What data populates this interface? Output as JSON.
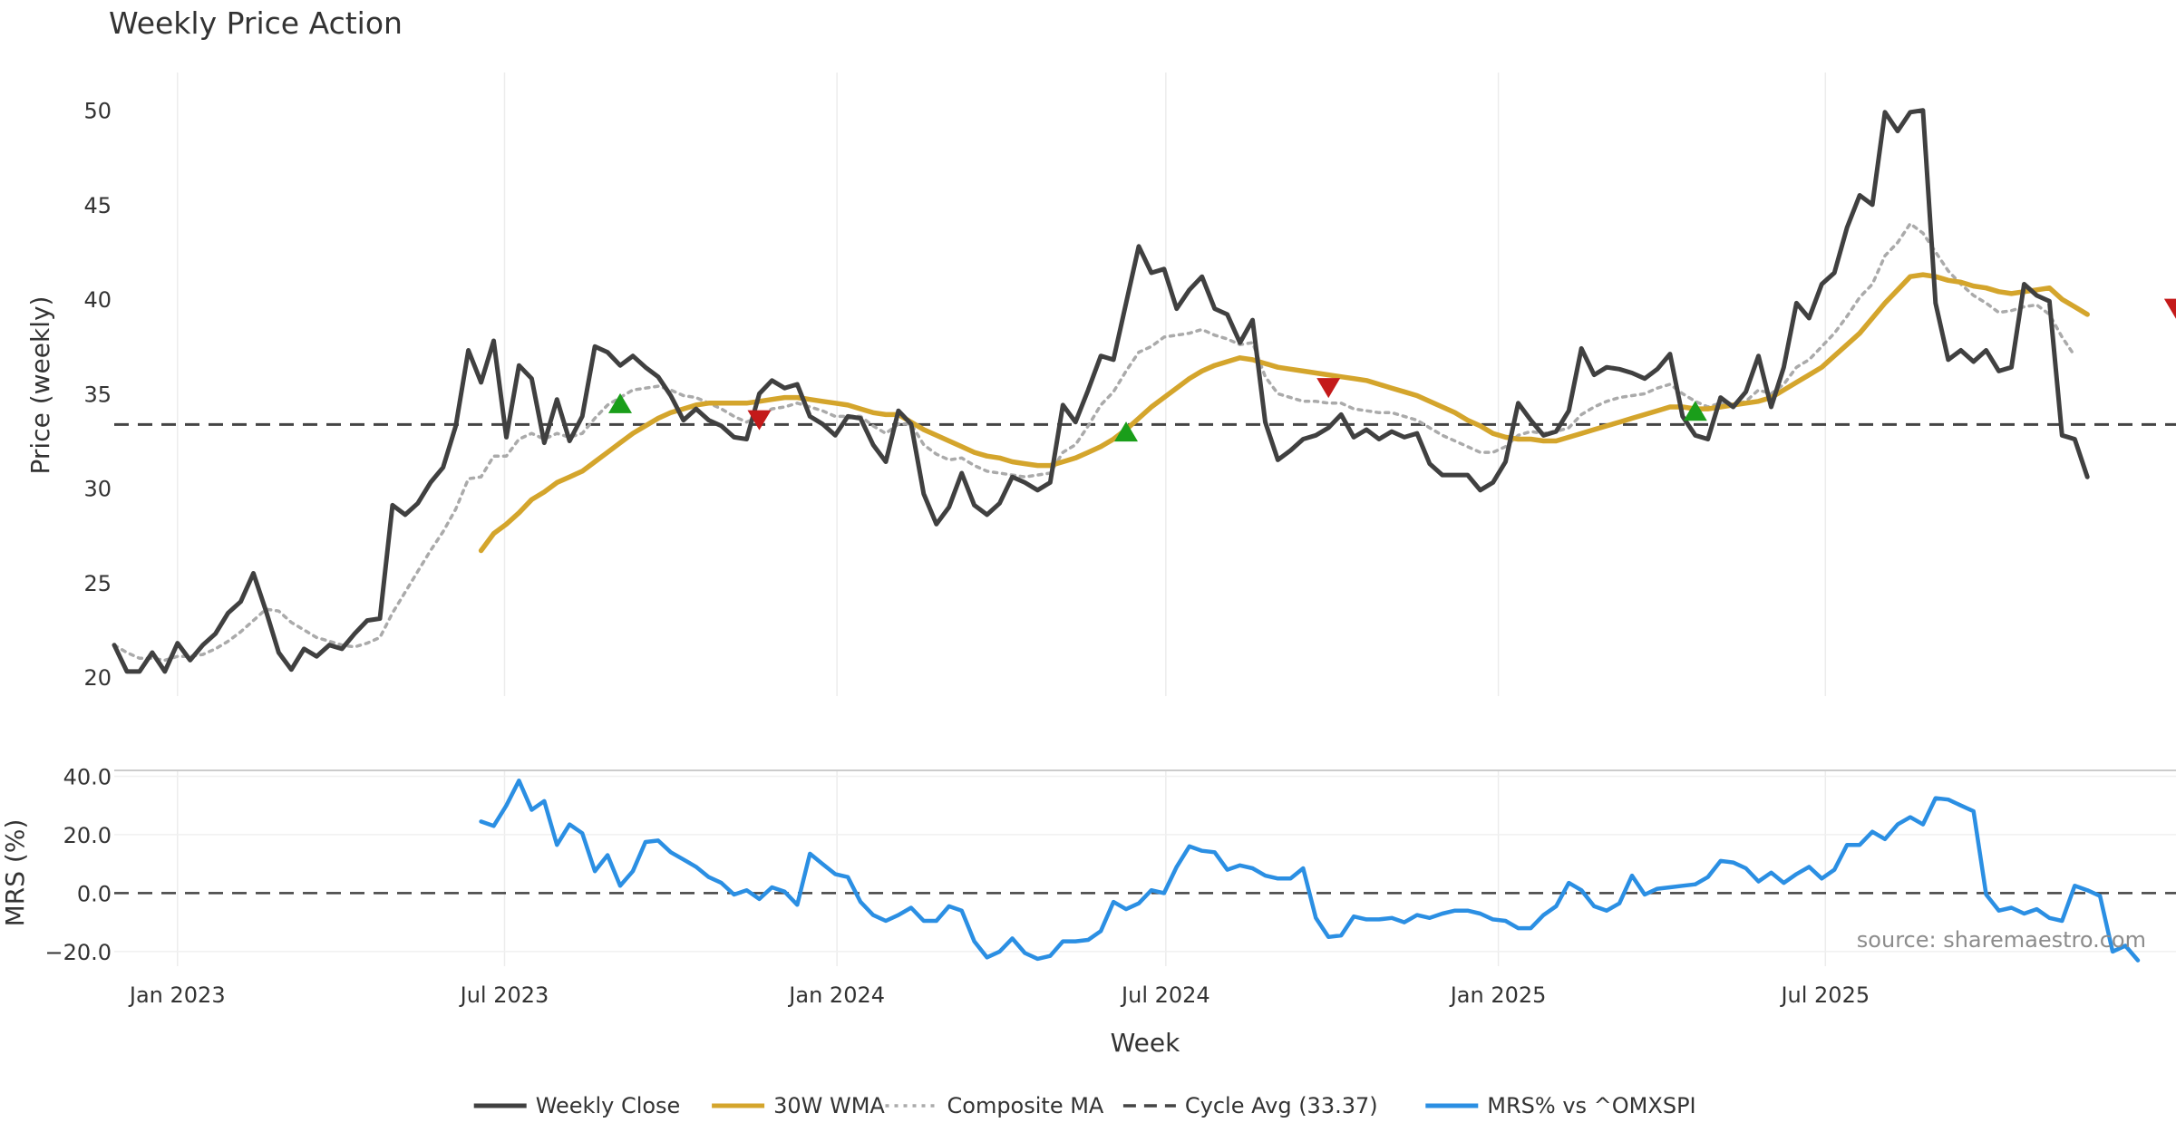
{
  "title": "Weekly Price Action",
  "source_note": "source: sharemaestro.com",
  "colors": {
    "close": "#404040",
    "wma": "#d4a52c",
    "composite": "#aaaaaa",
    "cycle": "#444444",
    "mrs": "#2b8fe3",
    "buy": "#1a9e1a",
    "sell": "#c41a1a",
    "grid": "#ececec"
  },
  "chart_data": [
    {
      "type": "line",
      "title": "Weekly Price Action",
      "xlabel": "",
      "ylabel": "Price (weekly)",
      "ylim": [
        19,
        52
      ],
      "yticks": [
        20,
        25,
        30,
        35,
        40,
        45,
        50
      ],
      "x_start": "2022-11-27",
      "x_step_days": 7,
      "cycle_avg": 33.37,
      "series": [
        {
          "name": "Weekly Close",
          "start_index": 0,
          "values": [
            21.7,
            20.3,
            20.3,
            21.3,
            20.3,
            21.8,
            20.9,
            21.7,
            22.3,
            23.4,
            24.0,
            25.5,
            23.5,
            21.3,
            20.4,
            21.5,
            21.1,
            21.7,
            21.5,
            22.3,
            23.0,
            23.1,
            29.1,
            28.6,
            29.2,
            30.3,
            31.1,
            33.3,
            37.3,
            35.6,
            37.8,
            32.7,
            36.5,
            35.8,
            32.4,
            34.7,
            32.5,
            33.8,
            37.5,
            37.2,
            36.5,
            37.0,
            36.4,
            35.9,
            34.9,
            33.6,
            34.2,
            33.6,
            33.3,
            32.7,
            32.6,
            35.0,
            35.7,
            35.3,
            35.5,
            33.8,
            33.4,
            32.8,
            33.8,
            33.7,
            32.3,
            31.4,
            34.1,
            33.4,
            29.7,
            28.1,
            29.0,
            30.8,
            29.1,
            28.6,
            29.2,
            30.6,
            30.3,
            29.9,
            30.3,
            34.4,
            33.5,
            35.2,
            37.0,
            36.8,
            39.8,
            42.8,
            41.4,
            41.6,
            39.5,
            40.5,
            41.2,
            39.5,
            39.2,
            37.7,
            38.9,
            33.5,
            31.5,
            32.0,
            32.6,
            32.8,
            33.2,
            33.9,
            32.7,
            33.1,
            32.6,
            33.0,
            32.7,
            32.9,
            31.3,
            30.7,
            30.7,
            30.7,
            29.9,
            30.3,
            31.4,
            34.5,
            33.6,
            32.8,
            33.0,
            34.1,
            37.4,
            36.0,
            36.4,
            36.3,
            36.1,
            35.8,
            36.3,
            37.1,
            33.8,
            32.8,
            32.6,
            34.8,
            34.3,
            35.1,
            37.0,
            34.3,
            36.4,
            39.8,
            39.0,
            40.8,
            41.4,
            43.8,
            45.5,
            45.0,
            49.9,
            48.9,
            49.9,
            50.0,
            39.8,
            36.8,
            37.3,
            36.7,
            37.3,
            36.2,
            36.4,
            40.8,
            40.2,
            39.9,
            32.8,
            32.6,
            30.6
          ]
        },
        {
          "name": "30W WMA",
          "start_index": 29,
          "values": [
            26.7,
            27.6,
            28.1,
            28.7,
            29.4,
            29.8,
            30.3,
            30.6,
            30.9,
            31.4,
            31.9,
            32.4,
            32.9,
            33.3,
            33.7,
            34.0,
            34.2,
            34.4,
            34.5,
            34.5,
            34.5,
            34.5,
            34.6,
            34.7,
            34.8,
            34.8,
            34.7,
            34.6,
            34.5,
            34.4,
            34.2,
            34.0,
            33.9,
            33.9,
            33.5,
            33.1,
            32.8,
            32.5,
            32.2,
            31.9,
            31.7,
            31.6,
            31.4,
            31.3,
            31.2,
            31.2,
            31.4,
            31.6,
            31.9,
            32.2,
            32.6,
            33.1,
            33.7,
            34.3,
            34.8,
            35.3,
            35.8,
            36.2,
            36.5,
            36.7,
            36.9,
            36.8,
            36.6,
            36.4,
            36.3,
            36.2,
            36.1,
            36.0,
            35.9,
            35.8,
            35.7,
            35.5,
            35.3,
            35.1,
            34.9,
            34.6,
            34.3,
            34.0,
            33.6,
            33.3,
            32.9,
            32.7,
            32.6,
            32.6,
            32.5,
            32.5,
            32.7,
            32.9,
            33.1,
            33.3,
            33.5,
            33.7,
            33.9,
            34.1,
            34.3,
            34.3,
            34.2,
            34.2,
            34.3,
            34.4,
            34.5,
            34.6,
            34.8,
            35.2,
            35.6,
            36.0,
            36.4,
            37.0,
            37.6,
            38.2,
            39.0,
            39.8,
            40.5,
            41.2,
            41.3,
            41.2,
            41.0,
            40.9,
            40.7,
            40.6,
            40.4,
            40.3,
            40.4,
            40.5,
            40.6,
            40.0,
            39.6,
            39.2
          ]
        },
        {
          "name": "Composite MA",
          "start_index": 0,
          "values": [
            21.7,
            21.3,
            21.0,
            21.0,
            20.9,
            21.1,
            21.1,
            21.2,
            21.5,
            21.9,
            22.4,
            23.0,
            23.6,
            23.5,
            22.9,
            22.5,
            22.1,
            21.9,
            21.7,
            21.6,
            21.8,
            22.1,
            23.4,
            24.5,
            25.6,
            26.7,
            27.7,
            28.9,
            30.5,
            30.6,
            31.7,
            31.7,
            32.6,
            32.9,
            32.6,
            32.9,
            32.7,
            32.9,
            33.7,
            34.4,
            34.8,
            35.2,
            35.3,
            35.4,
            35.2,
            34.9,
            34.8,
            34.5,
            34.2,
            33.8,
            33.5,
            33.8,
            34.2,
            34.3,
            34.5,
            34.3,
            34.1,
            33.8,
            33.8,
            33.8,
            33.3,
            32.9,
            33.4,
            33.4,
            32.3,
            31.8,
            31.5,
            31.6,
            31.2,
            30.9,
            30.8,
            30.7,
            30.6,
            30.7,
            30.8,
            31.9,
            32.3,
            33.3,
            34.4,
            35.1,
            36.2,
            37.2,
            37.5,
            38.0,
            38.1,
            38.2,
            38.4,
            38.1,
            37.9,
            37.6,
            37.7,
            35.9,
            35.0,
            34.8,
            34.6,
            34.6,
            34.5,
            34.5,
            34.2,
            34.1,
            34.0,
            34.0,
            33.8,
            33.6,
            33.2,
            32.8,
            32.5,
            32.2,
            31.9,
            31.9,
            32.2,
            32.8,
            33.0,
            32.9,
            33.0,
            33.2,
            33.9,
            34.3,
            34.6,
            34.8,
            34.9,
            35.0,
            35.3,
            35.5,
            35.0,
            34.6,
            34.3,
            34.5,
            34.4,
            34.6,
            35.2,
            35.0,
            35.5,
            36.4,
            36.8,
            37.5,
            38.2,
            39.1,
            40.1,
            40.8,
            42.3,
            43.0,
            44.0,
            43.5,
            42.5,
            41.5,
            40.8,
            40.2,
            39.8,
            39.3,
            39.4,
            39.6,
            39.7,
            39.2,
            38.0,
            37.0
          ]
        }
      ],
      "buy_signals": [
        {
          "index": 40,
          "value": 34.5
        },
        {
          "index": 80,
          "value": 33.0
        },
        {
          "index": 125,
          "value": 34.1
        }
      ],
      "sell_signals": [
        {
          "index": 51,
          "value": 33.6
        },
        {
          "index": 96,
          "value": 35.3
        },
        {
          "index": 163,
          "value": 39.5
        }
      ]
    },
    {
      "type": "line",
      "xlabel": "Week",
      "ylabel": "MRS (%)",
      "ylim": [
        -25,
        42
      ],
      "yticks": [
        -20.0,
        0.0,
        20.0,
        40.0
      ],
      "x_tick_labels": [
        {
          "date": "2023-01-01",
          "label": "Jan 2023"
        },
        {
          "date": "2023-07-01",
          "label": "Jul 2023"
        },
        {
          "date": "2024-01-01",
          "label": "Jan 2024"
        },
        {
          "date": "2024-07-01",
          "label": "Jul 2024"
        },
        {
          "date": "2025-01-01",
          "label": "Jan 2025"
        },
        {
          "date": "2025-07-01",
          "label": "Jul 2025"
        }
      ],
      "series": [
        {
          "name": "MRS% vs ^OMXSPI",
          "start_index": 29,
          "values": [
            24.5,
            23.0,
            30.0,
            38.5,
            28.5,
            31.5,
            16.5,
            23.5,
            20.5,
            7.5,
            13.0,
            2.5,
            7.5,
            17.5,
            18.0,
            14.0,
            11.5,
            9.0,
            5.5,
            3.5,
            -0.5,
            1.0,
            -2.0,
            2.0,
            0.5,
            -4.0,
            13.5,
            10.0,
            6.5,
            5.5,
            -3.0,
            -7.5,
            -9.5,
            -7.5,
            -5.0,
            -9.5,
            -9.5,
            -4.5,
            -6.0,
            -16.5,
            -22.0,
            -20.0,
            -15.5,
            -20.5,
            -22.5,
            -21.5,
            -16.5,
            -16.5,
            -16.0,
            -13.0,
            -3.0,
            -5.5,
            -3.5,
            1.0,
            0.0,
            9.0,
            16.0,
            14.5,
            14.0,
            8.0,
            9.5,
            8.5,
            6.0,
            5.0,
            5.0,
            8.5,
            -8.5,
            -15.0,
            -14.5,
            -8.0,
            -9.0,
            -9.0,
            -8.5,
            -10.0,
            -7.5,
            -8.5,
            -7.0,
            -6.0,
            -6.0,
            -7.0,
            -9.0,
            -9.5,
            -12.0,
            -12.0,
            -7.5,
            -4.5,
            3.5,
            1.0,
            -4.5,
            -6.0,
            -3.5,
            6.0,
            -0.5,
            1.5,
            2.0,
            2.5,
            3.0,
            5.5,
            11.0,
            10.5,
            8.5,
            4.0,
            7.0,
            3.5,
            6.5,
            9.0,
            5.0,
            8.0,
            16.5,
            16.5,
            21.0,
            18.5,
            23.5,
            26.0,
            23.5,
            32.5,
            32.0,
            30.0,
            28.0,
            -0.5,
            -6.0,
            -5.0,
            -7.0,
            -5.5,
            -8.5,
            -9.5,
            2.5,
            1.0,
            -1.0,
            -20.0,
            -18.0,
            -23.0
          ]
        }
      ]
    }
  ],
  "legend": {
    "placement": "bottom-center",
    "entries": [
      {
        "label": "Weekly Close",
        "style": "solid",
        "color": "#404040"
      },
      {
        "label": "30W WMA",
        "style": "solid",
        "color": "#d4a52c"
      },
      {
        "label": "Composite MA",
        "style": "dotted",
        "color": "#aaaaaa"
      },
      {
        "label": "Cycle Avg (33.37)",
        "style": "dashed",
        "color": "#444444"
      },
      {
        "label": "MRS% vs ^OMXSPI",
        "style": "solid",
        "color": "#2b8fe3"
      }
    ]
  }
}
